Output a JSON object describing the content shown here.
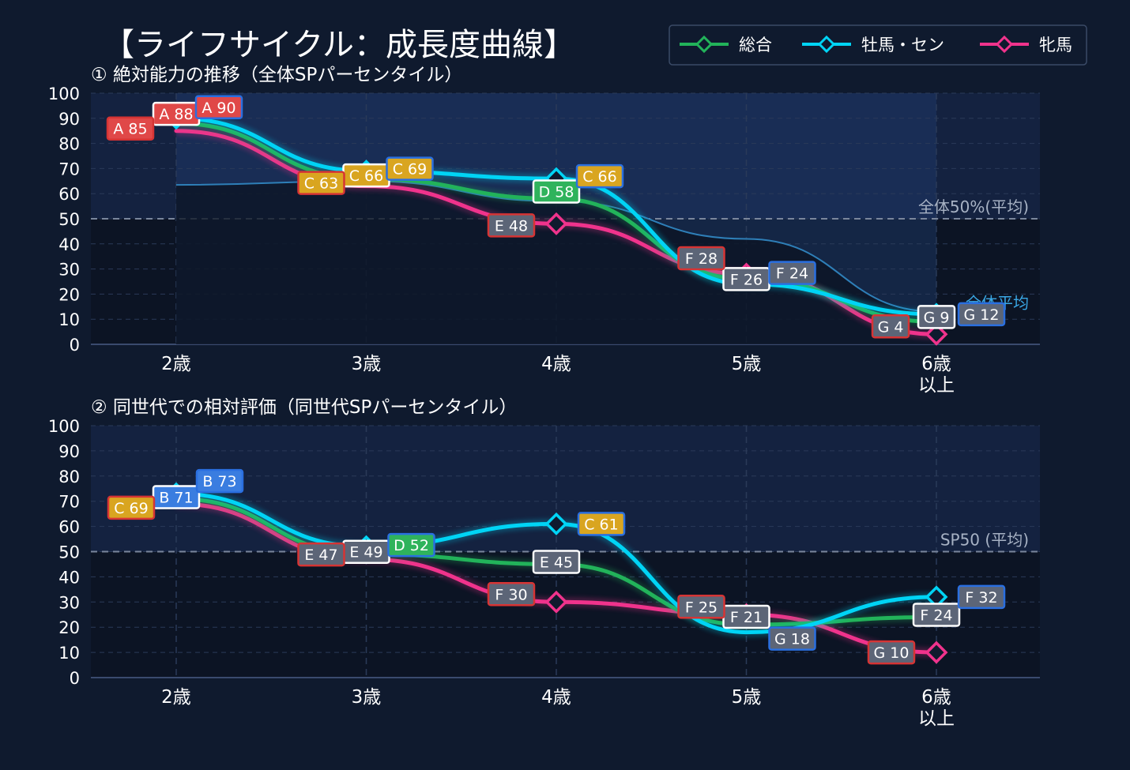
{
  "title": "【ライフサイクル：成長度曲線】",
  "legend": [
    {
      "name": "総合",
      "color": "#22b35a"
    },
    {
      "name": "牡馬・セン",
      "color": "#00d4f5"
    },
    {
      "name": "牝馬",
      "color": "#f0338c"
    }
  ],
  "chart_data": [
    {
      "type": "line",
      "subtitle": "① 絶対能力の推移（全体SPパーセンタイル）",
      "categories": [
        "2歳",
        "3歳",
        "4歳",
        "5歳",
        "6歳\n以上"
      ],
      "ylim": [
        0,
        100
      ],
      "yticks": [
        0,
        10,
        20,
        30,
        40,
        50,
        60,
        70,
        80,
        90,
        100
      ],
      "reference_line": {
        "value": 50,
        "label": "全体50%(平均)"
      },
      "average_curve": {
        "label": "全体平均",
        "color": "#2e7fb8",
        "values": [
          63.5,
          65,
          57,
          42,
          13
        ]
      },
      "series": [
        {
          "name": "総合",
          "values": [
            88,
            66,
            58,
            26,
            9
          ],
          "labels": [
            "A 88",
            "C 66",
            "D 58",
            "F 26",
            "G 9"
          ]
        },
        {
          "name": "牡馬・セン",
          "values": [
            90,
            69,
            66,
            24,
            12
          ],
          "labels": [
            "A 90",
            "C 69",
            "C 66",
            "F 24",
            "G 12"
          ]
        },
        {
          "name": "牝馬",
          "values": [
            85,
            63,
            48,
            28,
            4
          ],
          "labels": [
            "A 85",
            "C 63",
            "E 48",
            "F 28",
            "G 4"
          ]
        }
      ]
    },
    {
      "type": "line",
      "subtitle": "② 同世代での相対評価（同世代SPパーセンタイル）",
      "categories": [
        "2歳",
        "3歳",
        "4歳",
        "5歳",
        "6歳\n以上"
      ],
      "ylim": [
        0,
        100
      ],
      "yticks": [
        0,
        10,
        20,
        30,
        40,
        50,
        60,
        70,
        80,
        90,
        100
      ],
      "reference_line": {
        "value": 50,
        "label": "SP50 (平均)"
      },
      "series": [
        {
          "name": "総合",
          "values": [
            71,
            49,
            45,
            21,
            24
          ],
          "labels": [
            "B 71",
            "E 49",
            "E 45",
            "F 21",
            "F 24"
          ]
        },
        {
          "name": "牡馬・セン",
          "values": [
            73,
            52,
            61,
            18,
            32
          ],
          "labels": [
            "B 73",
            "D 52",
            "C 61",
            "G 18",
            "F 32"
          ]
        },
        {
          "name": "牝馬",
          "values": [
            69,
            47,
            30,
            25,
            10
          ],
          "labels": [
            "C 69",
            "E 47",
            "F 30",
            "F 25",
            "G 10"
          ]
        }
      ]
    }
  ]
}
